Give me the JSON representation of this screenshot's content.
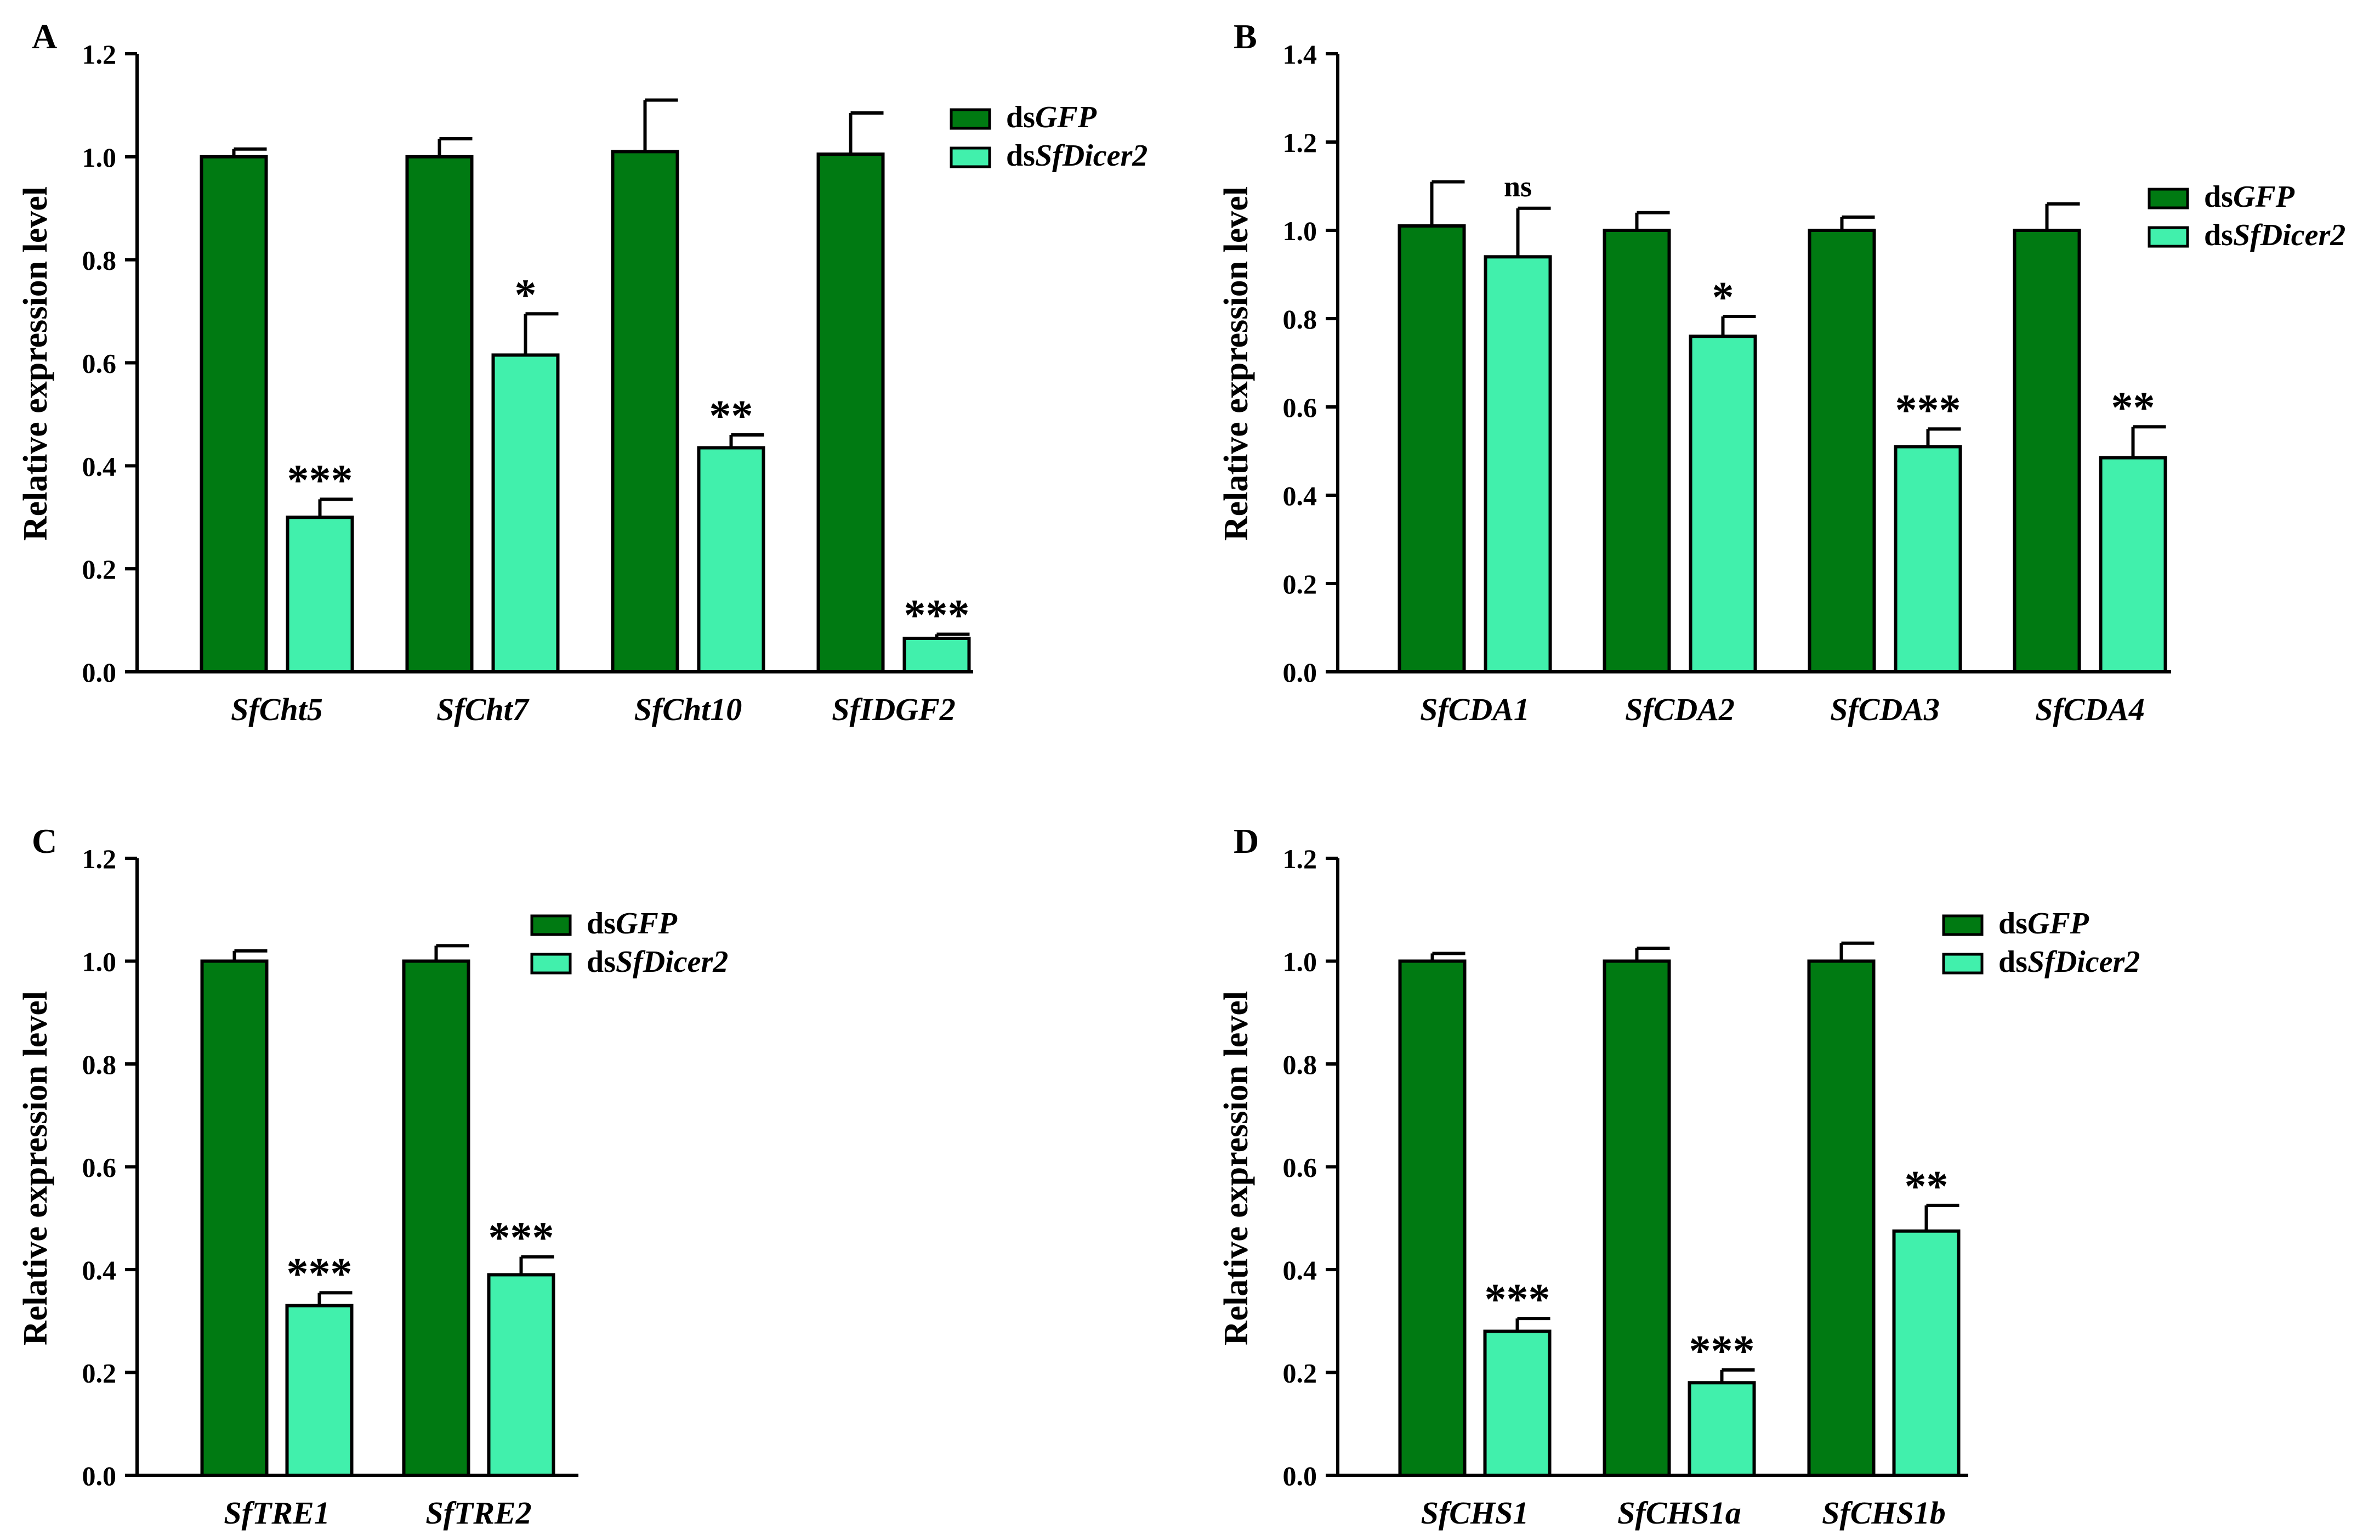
{
  "colors": {
    "control": "#007A12",
    "treatment": "#41F0AC",
    "stroke": "#000000"
  },
  "legend": [
    {
      "prefix": "ds",
      "gene": "GFP"
    },
    {
      "prefix": "ds",
      "gene": "SfDicer2"
    }
  ],
  "chart_data": [
    {
      "panel": "A",
      "type": "bar",
      "ylabel": "Relative expression level",
      "ylim": [
        0,
        1.2
      ],
      "yticks": [
        "0.0",
        "0.2",
        "0.4",
        "0.6",
        "0.8",
        "1.0",
        "1.2"
      ],
      "categories": [
        "SfCht5",
        "SfCht7",
        "SfCht10",
        "SfIDGF2"
      ],
      "series": [
        {
          "name": "dsGFP",
          "values": [
            1.0,
            1.0,
            1.01,
            1.005
          ],
          "errors": [
            0.015,
            0.035,
            0.1,
            0.08
          ]
        },
        {
          "name": "dsSfDicer2",
          "values": [
            0.3,
            0.615,
            0.435,
            0.065
          ],
          "errors": [
            0.035,
            0.08,
            0.025,
            0.008
          ]
        }
      ],
      "significance": [
        "***",
        "*",
        "**",
        "***"
      ]
    },
    {
      "panel": "B",
      "type": "bar",
      "ylabel": "Relative expression level",
      "ylim": [
        0,
        1.4
      ],
      "yticks": [
        "0.0",
        "0.2",
        "0.4",
        "0.6",
        "0.8",
        "1.0",
        "1.2",
        "1.4"
      ],
      "categories": [
        "SfCDA1",
        "SfCDA2",
        "SfCDA3",
        "SfCDA4"
      ],
      "series": [
        {
          "name": "dsGFP",
          "values": [
            1.01,
            1.0,
            1.0,
            1.0
          ],
          "errors": [
            0.1,
            0.04,
            0.03,
            0.06
          ]
        },
        {
          "name": "dsSfDicer2",
          "values": [
            0.94,
            0.76,
            0.51,
            0.485
          ],
          "errors": [
            0.11,
            0.045,
            0.04,
            0.07
          ]
        }
      ],
      "significance": [
        "ns",
        "*",
        "***",
        "**"
      ]
    },
    {
      "panel": "C",
      "type": "bar",
      "ylabel": "Relative expression level",
      "ylim": [
        0,
        1.2
      ],
      "yticks": [
        "0.0",
        "0.2",
        "0.4",
        "0.6",
        "0.8",
        "1.0",
        "1.2"
      ],
      "categories": [
        "SfTRE1",
        "SfTRE2"
      ],
      "series": [
        {
          "name": "dsGFP",
          "values": [
            1.0,
            1.0
          ],
          "errors": [
            0.02,
            0.03
          ]
        },
        {
          "name": "dsSfDicer2",
          "values": [
            0.33,
            0.39
          ],
          "errors": [
            0.025,
            0.035
          ]
        }
      ],
      "significance": [
        "***",
        "***"
      ]
    },
    {
      "panel": "D",
      "type": "bar",
      "ylabel": "Relative expression level",
      "ylim": [
        0,
        1.2
      ],
      "yticks": [
        "0.0",
        "0.2",
        "0.4",
        "0.6",
        "0.8",
        "1.0",
        "1.2"
      ],
      "categories": [
        "SfCHS1",
        "SfCHS1a",
        "SfCHS1b"
      ],
      "series": [
        {
          "name": "dsGFP",
          "values": [
            1.0,
            1.0,
            1.0
          ],
          "errors": [
            0.015,
            0.025,
            0.035
          ]
        },
        {
          "name": "dsSfDicer2",
          "values": [
            0.28,
            0.18,
            0.475
          ],
          "errors": [
            0.025,
            0.025,
            0.05
          ]
        }
      ],
      "significance": [
        "***",
        "***",
        "**"
      ]
    }
  ]
}
